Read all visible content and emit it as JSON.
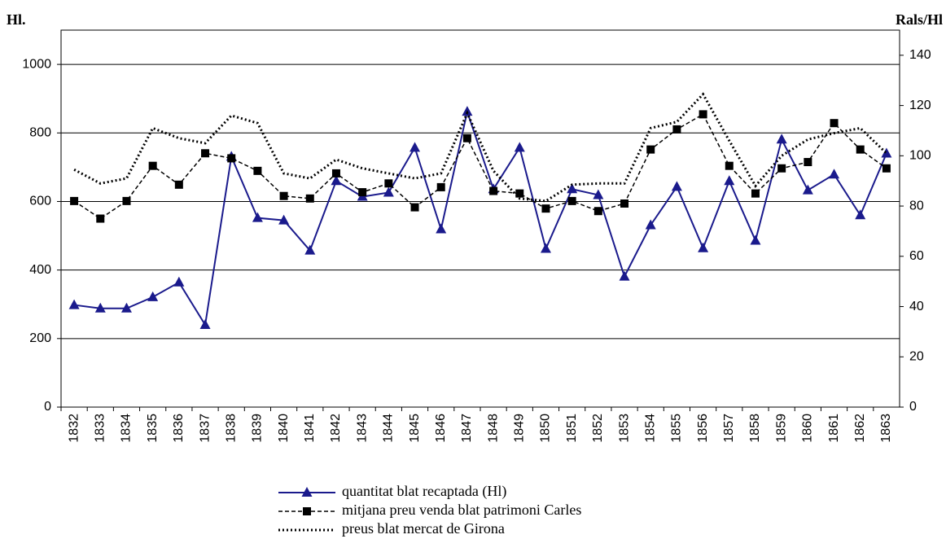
{
  "chart_data": {
    "type": "line",
    "y_label": "Hl.",
    "y2_label": "Rals/Hl",
    "categories": [
      "1832",
      "1833",
      "1834",
      "1835",
      "1836",
      "1837",
      "1838",
      "1839",
      "1840",
      "1841",
      "1842",
      "1843",
      "1844",
      "1845",
      "1846",
      "1847",
      "1848",
      "1849",
      "1850",
      "1851",
      "1852",
      "1853",
      "1854",
      "1855",
      "1856",
      "1857",
      "1858",
      "1859",
      "1860",
      "1861",
      "1862",
      "1863"
    ],
    "ylim": [
      0,
      1100
    ],
    "yticks": [
      0,
      200,
      400,
      600,
      800,
      1000
    ],
    "y2lim": [
      0,
      150
    ],
    "y2ticks": [
      0,
      20,
      40,
      60,
      80,
      100,
      120,
      140
    ],
    "grid": true,
    "series": [
      {
        "name": "quantitat blat recaptada (Hl)",
        "color": "#1a1a8c",
        "dash": "solid",
        "marker": "triangle",
        "axis": "y",
        "values": [
          298,
          288,
          288,
          321,
          364,
          240,
          731,
          552,
          545,
          457,
          660,
          614,
          626,
          757,
          519,
          862,
          636,
          757,
          462,
          636,
          619,
          381,
          531,
          643,
          464,
          660,
          486,
          781,
          633,
          679,
          560,
          740
        ]
      },
      {
        "name": "mitjana preu venda blat patrimoni Carles",
        "color": "#000000",
        "dash": "dashed",
        "marker": "square",
        "axis": "y2",
        "values": [
          82,
          75,
          82,
          96,
          88.5,
          101,
          99,
          94,
          84,
          83,
          93,
          85.5,
          89,
          79.5,
          87.5,
          107,
          86,
          85,
          79,
          82,
          78,
          81,
          102.5,
          110.5,
          116.5,
          96,
          85,
          95,
          97.5,
          113,
          102.5,
          95
        ]
      },
      {
        "name": "preus blat mercat de Girona",
        "color": "#000000",
        "dash": "dotted",
        "marker": null,
        "axis": "y2",
        "values": [
          94.5,
          89,
          91,
          111,
          107,
          105,
          116,
          113,
          93,
          91,
          98.5,
          95,
          93,
          91,
          93,
          117,
          94,
          83,
          82,
          88.5,
          89,
          89,
          111,
          113.5,
          124.5,
          106,
          88,
          100,
          106.5,
          109,
          111,
          101
        ]
      }
    ]
  }
}
